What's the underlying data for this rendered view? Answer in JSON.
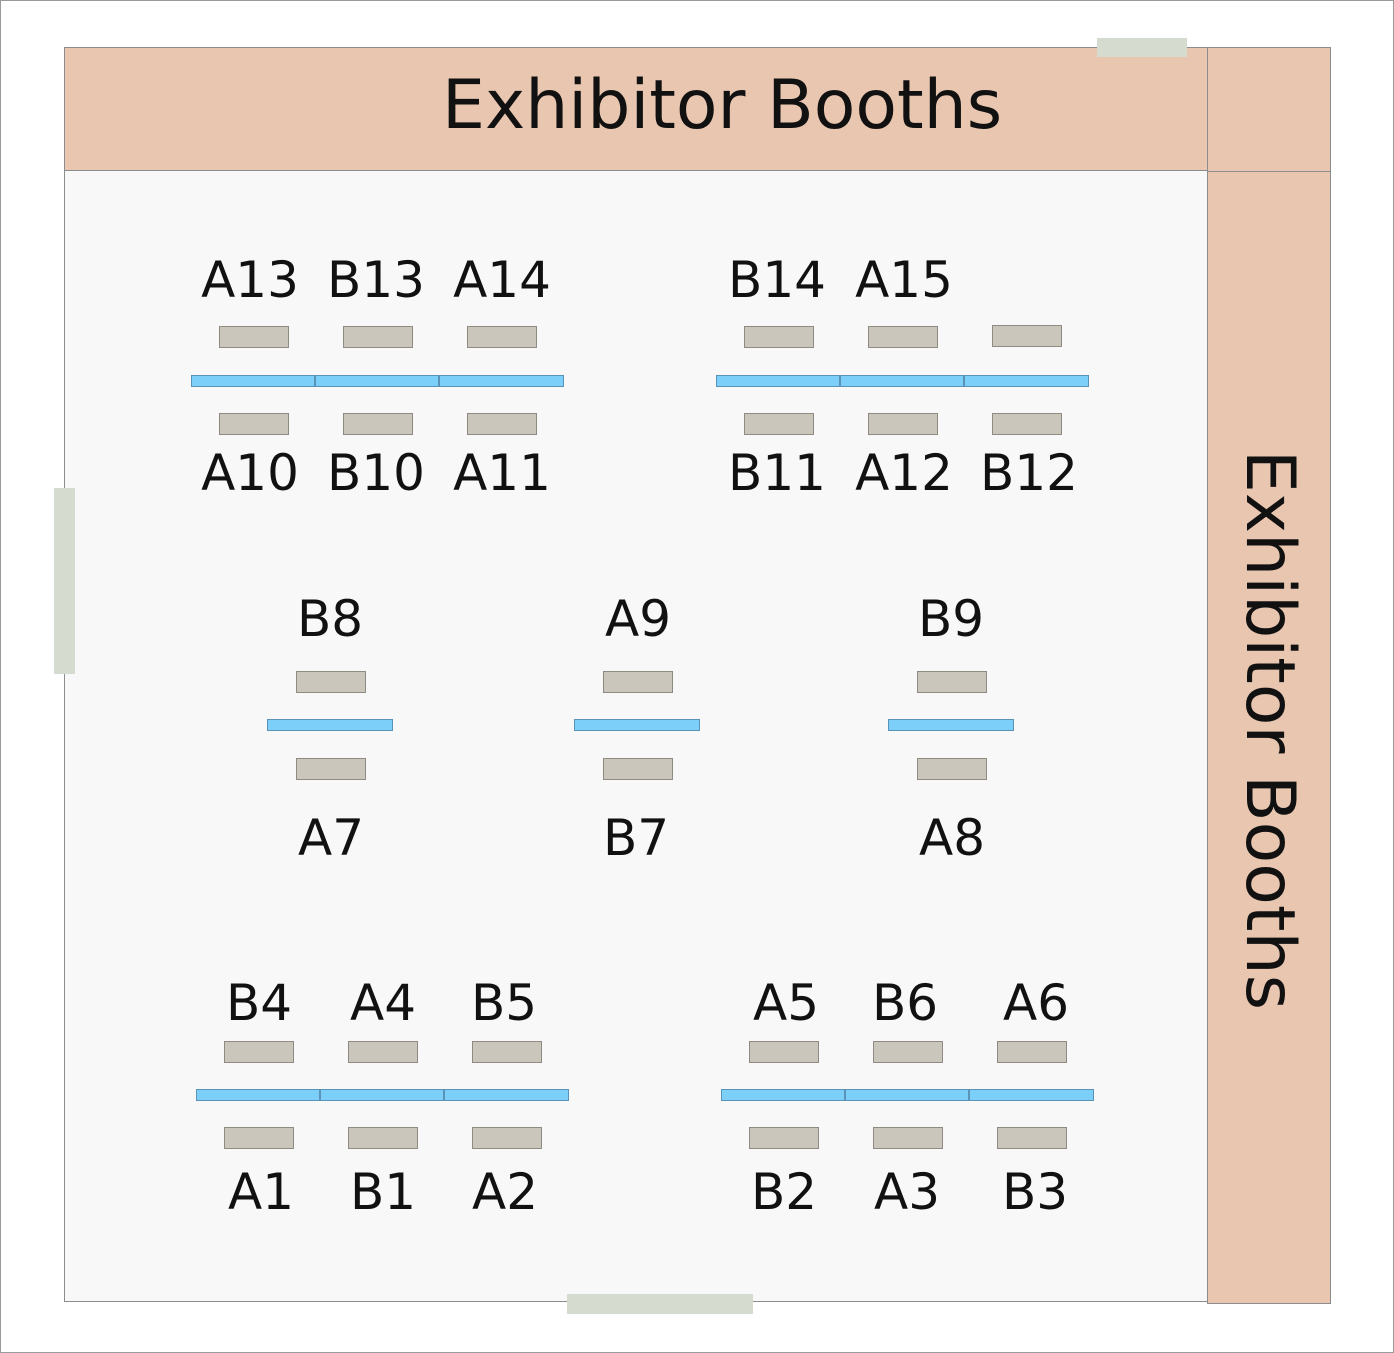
{
  "hall": {
    "top_band_title": "Exhibitor Booths",
    "right_band_title": "Exhibitor Booths"
  },
  "colors": {
    "band": "#e9c6b0",
    "floor": "#f8f8f8",
    "table": "#cbc6bb",
    "divider": "#7ccff9",
    "door": "#d6dbd0"
  },
  "booth_labels": {
    "A13": "A13",
    "B13": "B13",
    "A14": "A14",
    "B14": "B14",
    "A15": "A15",
    "A10": "A10",
    "B10": "B10",
    "A11": "A11",
    "B11": "B11",
    "A12": "A12",
    "B12": "B12",
    "B8": "B8",
    "A9": "A9",
    "B9": "B9",
    "A7": "A7",
    "B7": "B7",
    "A8": "A8",
    "B4": "B4",
    "A4": "A4",
    "B5": "B5",
    "A5": "A5",
    "B6": "B6",
    "A6": "A6",
    "A1": "A1",
    "B1": "B1",
    "A2": "A2",
    "B2": "B2",
    "A3": "A3",
    "B3": "B3"
  }
}
